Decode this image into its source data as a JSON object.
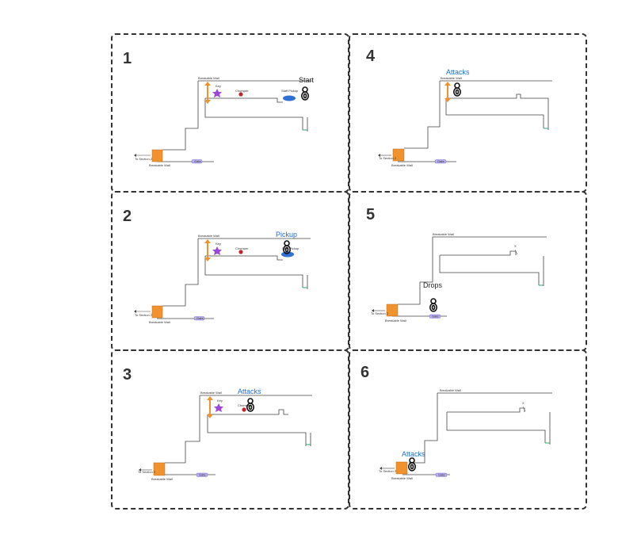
{
  "colors": {
    "wall": "#444444",
    "breakable": "#f0922e",
    "key": "#9b47d9",
    "chomper": "#c0262d",
    "pickup": "#2f6fd6",
    "action_blue": "#1a6fd1",
    "water": "#2aa86d"
  },
  "panels": [
    {
      "number": "1",
      "caption": "Start",
      "caption_color": "black"
    },
    {
      "number": "2",
      "caption": "Pickup",
      "caption_color": "blue"
    },
    {
      "number": "3",
      "caption": "Attacks",
      "caption_color": "blue"
    },
    {
      "number": "4",
      "caption": "Attacks",
      "caption_color": "blue"
    },
    {
      "number": "5",
      "caption": "Drops",
      "caption_color": "black"
    },
    {
      "number": "6",
      "caption": "Attacks",
      "caption_color": "blue"
    }
  ],
  "labels": {
    "breakable_wall": "Breakable Wall",
    "key": "Key",
    "chomper": "Chomper",
    "staff_pickup": "Staff Pickup",
    "to_section": "To Section 2",
    "gate": "Gate",
    "x_mark": "X"
  },
  "icons": {
    "player": "player-ring-icon",
    "key": "star-icon",
    "chomper": "dot-icon",
    "breakable": "double-arrow-icon",
    "box": "square-icon"
  }
}
